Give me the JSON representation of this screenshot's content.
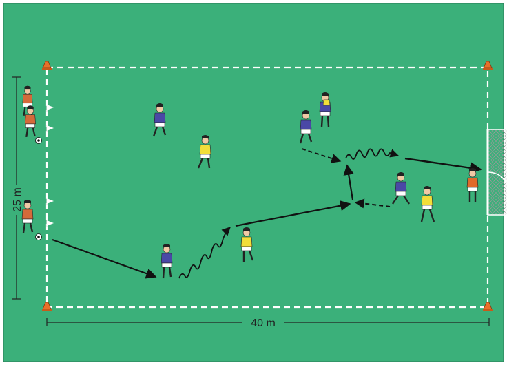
{
  "field": {
    "colors": {
      "grass": "#3bb07a",
      "border": "#2a7a57",
      "lines": "#ffffff",
      "cone": "#e8702a",
      "attacker_shirt": "#4a48a6",
      "attacker_shorts": "#ffffff",
      "defender_shirt": "#f2de3a",
      "keeper_shirt": "#e06a2a",
      "arrow": "#111111"
    },
    "dimensions": {
      "width_label": "40 m",
      "height_label": "25 m"
    }
  },
  "players": [
    {
      "name": "waiting-player",
      "role": "waiting"
    },
    {
      "name": "waiting-player",
      "role": "waiting"
    },
    {
      "name": "waiting-player",
      "role": "waiting"
    },
    {
      "name": "attacker",
      "role": "attacker"
    },
    {
      "name": "defender",
      "role": "defender"
    },
    {
      "name": "attacker",
      "role": "attacker"
    },
    {
      "name": "defender",
      "role": "defender"
    },
    {
      "name": "attacker",
      "role": "attacker"
    },
    {
      "name": "attacker",
      "role": "attacker"
    },
    {
      "name": "defender",
      "role": "defender"
    },
    {
      "name": "attacker",
      "role": "attacker"
    },
    {
      "name": "defender",
      "role": "defender"
    },
    {
      "name": "goalkeeper",
      "role": "goalkeeper"
    }
  ],
  "icons": {
    "ball": "soccer-ball-icon",
    "cone": "cone-icon",
    "flag": "flag-icon",
    "goal": "goal-icon"
  }
}
